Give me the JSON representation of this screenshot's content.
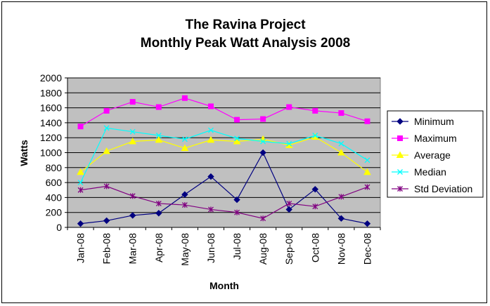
{
  "chart_data": {
    "type": "line",
    "title": [
      "The Ravina Project",
      "Monthly Peak Watt Analysis 2008"
    ],
    "xlabel": "Month",
    "ylabel": "Watts",
    "ylim": [
      0,
      2000
    ],
    "yticks": [
      0,
      200,
      400,
      600,
      800,
      1000,
      1200,
      1400,
      1600,
      1800,
      2000
    ],
    "grid": true,
    "plot_background": "#c0c0c0",
    "legend_position": "right",
    "categories": [
      "Jan-08",
      "Feb-08",
      "Mar-08",
      "Apr-08",
      "May-08",
      "Jun-08",
      "Jul-08",
      "Aug-08",
      "Sep-08",
      "Oct-08",
      "Nov-08",
      "Dec-08"
    ],
    "series": [
      {
        "name": "Minimum",
        "color": "#000080",
        "marker": "diamond",
        "values": [
          50,
          90,
          160,
          190,
          440,
          680,
          370,
          1000,
          240,
          510,
          120,
          50
        ]
      },
      {
        "name": "Maximum",
        "color": "#ff00ff",
        "marker": "square",
        "values": [
          1350,
          1560,
          1680,
          1610,
          1730,
          1620,
          1440,
          1450,
          1610,
          1560,
          1530,
          1420
        ]
      },
      {
        "name": "Average",
        "color": "#ffff00",
        "marker": "triangle",
        "values": [
          740,
          1020,
          1150,
          1170,
          1060,
          1170,
          1150,
          1180,
          1100,
          1210,
          1000,
          740
        ]
      },
      {
        "name": "Median",
        "color": "#00ffff",
        "marker": "x",
        "values": [
          600,
          1330,
          1280,
          1230,
          1180,
          1300,
          1190,
          1150,
          1120,
          1230,
          1120,
          900
        ]
      },
      {
        "name": "Std Deviation",
        "color": "#800080",
        "marker": "star",
        "values": [
          500,
          550,
          420,
          320,
          300,
          240,
          200,
          120,
          320,
          280,
          410,
          540
        ]
      }
    ]
  }
}
